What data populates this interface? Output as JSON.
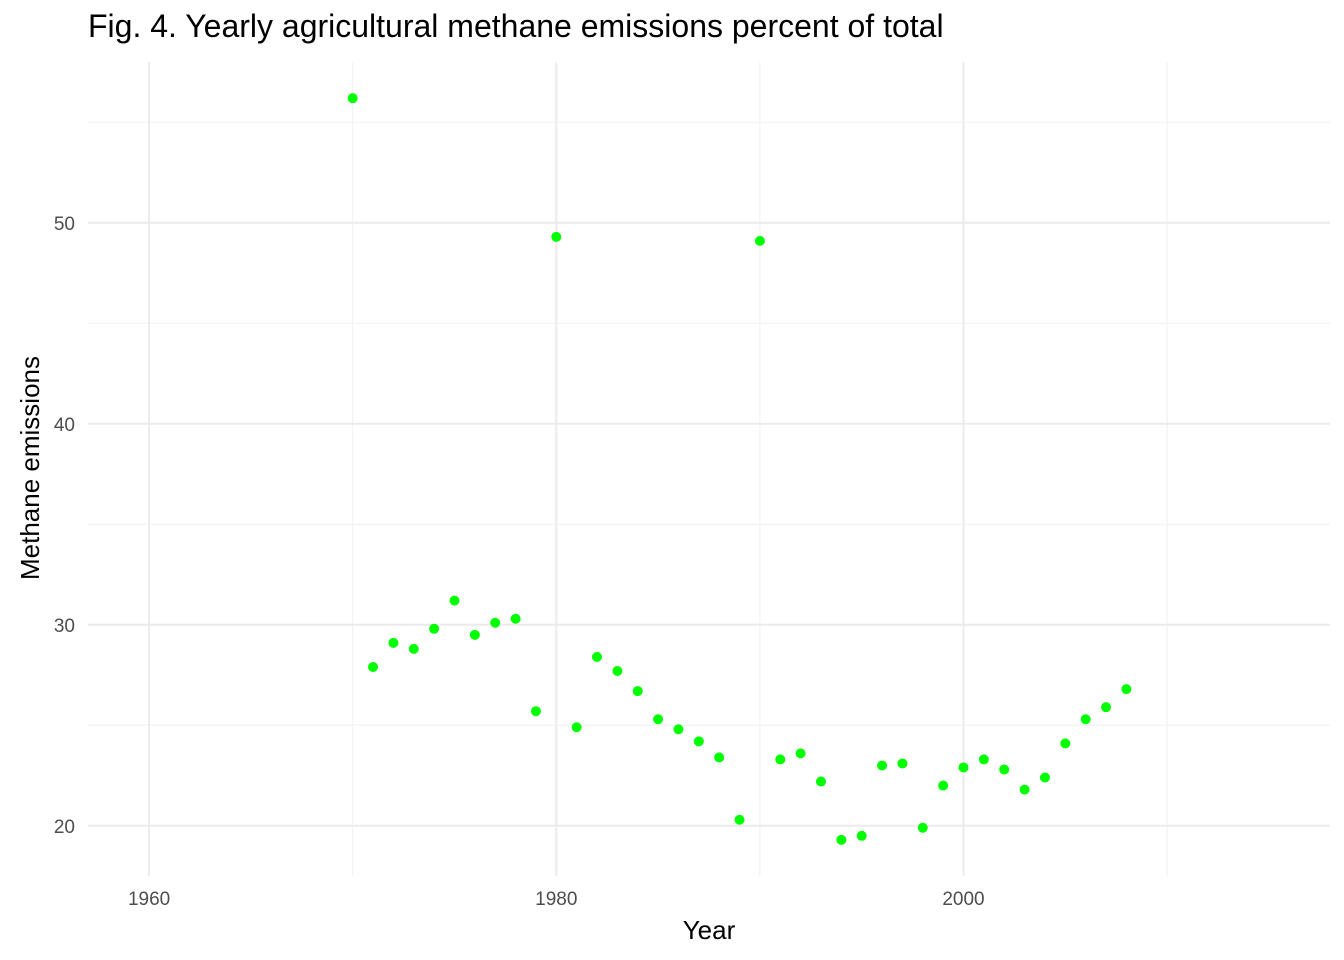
{
  "chart_data": {
    "type": "scatter",
    "title": "Fig. 4. Yearly agricultural methane emissions percent of total",
    "xlabel": "Year",
    "ylabel": "Methane emissions",
    "xlim": [
      1957,
      2018
    ],
    "ylim": [
      17.5,
      58.0
    ],
    "x_ticks": [
      1960,
      1980,
      2000
    ],
    "x_tick_labels": [
      "1960",
      "1980",
      "2000"
    ],
    "x_minor_ticks": [
      1970,
      1990,
      2010
    ],
    "y_ticks": [
      20,
      30,
      40,
      50
    ],
    "y_tick_labels": [
      "20",
      "30",
      "40",
      "50"
    ],
    "y_minor_ticks": [
      25,
      35,
      45,
      55
    ],
    "grid": true,
    "legend": "none",
    "point_color": "#00ff00",
    "x": [
      1970,
      1971,
      1972,
      1973,
      1974,
      1975,
      1976,
      1977,
      1978,
      1979,
      1980,
      1981,
      1982,
      1983,
      1984,
      1985,
      1986,
      1987,
      1988,
      1989,
      1990,
      1991,
      1992,
      1993,
      1994,
      1995,
      1996,
      1997,
      1998,
      1999,
      2000,
      2001,
      2002,
      2003,
      2004,
      2005,
      2006,
      2007,
      2008
    ],
    "y": [
      56.2,
      27.9,
      29.1,
      28.8,
      29.8,
      31.2,
      29.5,
      30.1,
      30.3,
      25.7,
      49.3,
      24.9,
      28.4,
      27.7,
      26.7,
      25.3,
      24.8,
      24.2,
      23.4,
      20.3,
      49.1,
      23.3,
      23.6,
      22.2,
      19.3,
      19.5,
      23.0,
      23.1,
      19.9,
      22.0,
      22.9,
      23.3,
      22.8,
      21.8,
      22.4,
      24.1,
      25.3,
      25.9,
      26.8
    ]
  }
}
